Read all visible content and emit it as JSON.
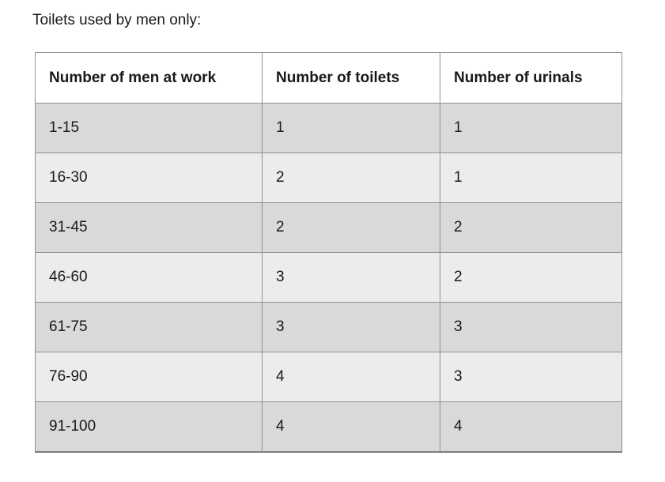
{
  "page": {
    "caption": "Toilets used by men only:"
  },
  "table": {
    "columns": [
      "Number of men at work",
      "Number of toilets",
      "Number of urinals"
    ],
    "rows": [
      [
        "1-15",
        "1",
        "1"
      ],
      [
        "16-30",
        "2",
        "1"
      ],
      [
        "31-45",
        "2",
        "2"
      ],
      [
        "46-60",
        "3",
        "2"
      ],
      [
        "61-75",
        "3",
        "3"
      ],
      [
        "76-90",
        "4",
        "3"
      ],
      [
        "91-100",
        "4",
        "4"
      ]
    ],
    "colors": {
      "header_bg": "#ffffff",
      "row_odd_bg": "#d9d9d9",
      "row_even_bg": "#ececec",
      "border": "#919191",
      "text": "#1a1a1a"
    }
  }
}
